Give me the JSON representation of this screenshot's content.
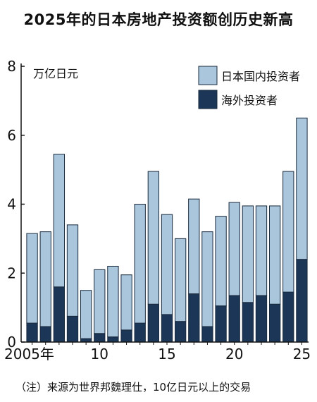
{
  "chart_data": {
    "type": "bar",
    "stacked": true,
    "title": "2025年的日本房地产投资额创历史新高",
    "unit_label": "万亿日元",
    "ylim": [
      0,
      8
    ],
    "yticks": [
      "0",
      "2",
      "4",
      "6",
      "8"
    ],
    "x": [
      2005,
      2006,
      2007,
      2008,
      2009,
      2010,
      2011,
      2012,
      2013,
      2014,
      2015,
      2016,
      2017,
      2018,
      2019,
      2020,
      2021,
      2022,
      2023,
      2024,
      2025
    ],
    "xtick_labels": [
      {
        "x": 2005,
        "label": "2005年"
      },
      {
        "x": 2010,
        "label": "10"
      },
      {
        "x": 2015,
        "label": "15"
      },
      {
        "x": 2020,
        "label": "20"
      },
      {
        "x": 2025,
        "label": "25"
      }
    ],
    "series": [
      {
        "name": "海外投资者",
        "color": "#1b3656",
        "values": [
          0.55,
          0.45,
          1.6,
          0.75,
          0.1,
          0.25,
          0.15,
          0.35,
          0.55,
          1.1,
          0.8,
          0.6,
          1.4,
          0.45,
          1.05,
          1.35,
          1.15,
          1.35,
          1.1,
          1.45,
          2.4
        ]
      },
      {
        "name": "日本国内投资者",
        "color": "#a9c6dd",
        "values": [
          2.6,
          2.75,
          3.85,
          2.65,
          1.4,
          1.85,
          2.05,
          1.6,
          3.45,
          3.85,
          2.9,
          2.4,
          2.75,
          2.75,
          2.6,
          2.7,
          2.8,
          2.6,
          2.85,
          3.5,
          4.1
        ]
      }
    ],
    "legend_position": "top-right",
    "grid": false
  },
  "note": "（注）来源为世界邦魏理仕，10亿日元以上的交易"
}
